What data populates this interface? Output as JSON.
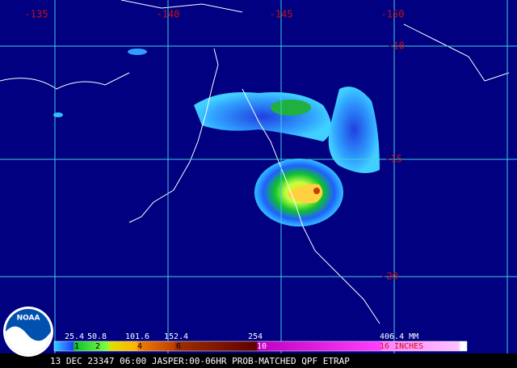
{
  "map": {
    "lon_labels": [
      "-135",
      "-140",
      "-145",
      "-150"
    ],
    "lat_labels": [
      "-10",
      "-15",
      "-20"
    ]
  },
  "logo": {
    "text": "NOAA"
  },
  "legend": {
    "mm_labels": [
      "25.4",
      "50.8",
      "101.6",
      "152.4",
      "254",
      "406.4 MM"
    ],
    "inch_labels": [
      "1",
      "2",
      "4",
      "6",
      "10",
      "16 INCHES"
    ]
  },
  "footer": {
    "text": "13 DEC 23347 06:00 JASPER:00-06HR PROB-MATCHED QPF ETRAP"
  }
}
